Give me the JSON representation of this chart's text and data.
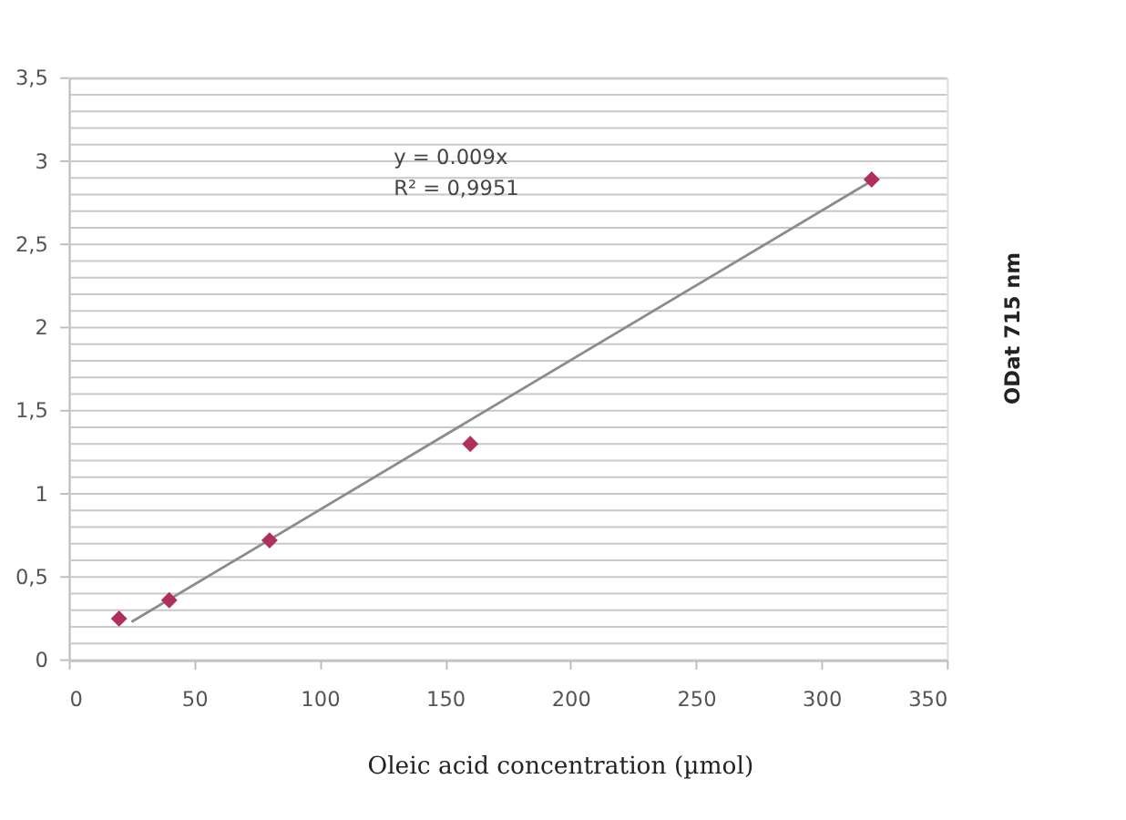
{
  "chart_data": {
    "type": "scatter",
    "xlabel": "Oleic acid concentration  (µmol)",
    "ylabel": "ODat  715 nm",
    "annotations": [
      "y = 0.009x",
      "R² = 0,9951"
    ],
    "series": [
      {
        "color": "#b0305c",
        "marker": "diamond",
        "x": [
          20,
          40,
          80,
          160,
          320
        ],
        "values": [
          0.25,
          0.36,
          0.72,
          1.3,
          2.89
        ]
      },
      {
        "type": "line",
        "color": "#8c8c8c",
        "marker": "none",
        "line_style": "solid",
        "x": [
          25,
          322
        ],
        "values": [
          0.23,
          2.9
        ]
      }
    ],
    "xlim": [
      0,
      350
    ],
    "xticks": [
      0,
      50,
      100,
      150,
      200,
      250,
      300,
      350
    ],
    "ylim": [
      0,
      3.5
    ],
    "yticks": [
      0,
      {
        "value": 0.1,
        "label": null
      },
      {
        "value": 0.2,
        "label": null
      },
      {
        "value": 0.3,
        "label": null
      },
      {
        "value": 0.4,
        "label": null
      },
      {
        "value": 0.5,
        "label": "0,5"
      },
      {
        "value": 0.6,
        "label": null
      },
      {
        "value": 0.7,
        "label": null
      },
      {
        "value": 0.8,
        "label": null
      },
      {
        "value": 0.9,
        "label": null
      },
      1,
      {
        "value": 1.1,
        "label": null
      },
      {
        "value": 1.2,
        "label": null
      },
      {
        "value": 1.3,
        "label": null
      },
      {
        "value": 1.4,
        "label": null
      },
      {
        "value": 1.5,
        "label": "1,5"
      },
      {
        "value": 1.6,
        "label": null
      },
      {
        "value": 1.7,
        "label": null
      },
      {
        "value": 1.8,
        "label": null
      },
      {
        "value": 1.9,
        "label": null
      },
      2,
      {
        "value": 2.1,
        "label": null
      },
      {
        "value": 2.2,
        "label": null
      },
      {
        "value": 2.3,
        "label": null
      },
      {
        "value": 2.4,
        "label": null
      },
      {
        "value": 2.5,
        "label": "2,5"
      },
      {
        "value": 2.6,
        "label": null
      },
      {
        "value": 2.7,
        "label": null
      },
      {
        "value": 2.8,
        "label": null
      },
      {
        "value": 2.9,
        "label": null
      },
      3,
      {
        "value": 3.1,
        "label": null
      },
      {
        "value": 3.2,
        "label": null
      },
      {
        "value": 3.3,
        "label": null
      },
      {
        "value": 3.4,
        "label": null
      },
      {
        "value": 3.5,
        "label": "3,5"
      }
    ],
    "grid": "y",
    "legend": false
  }
}
